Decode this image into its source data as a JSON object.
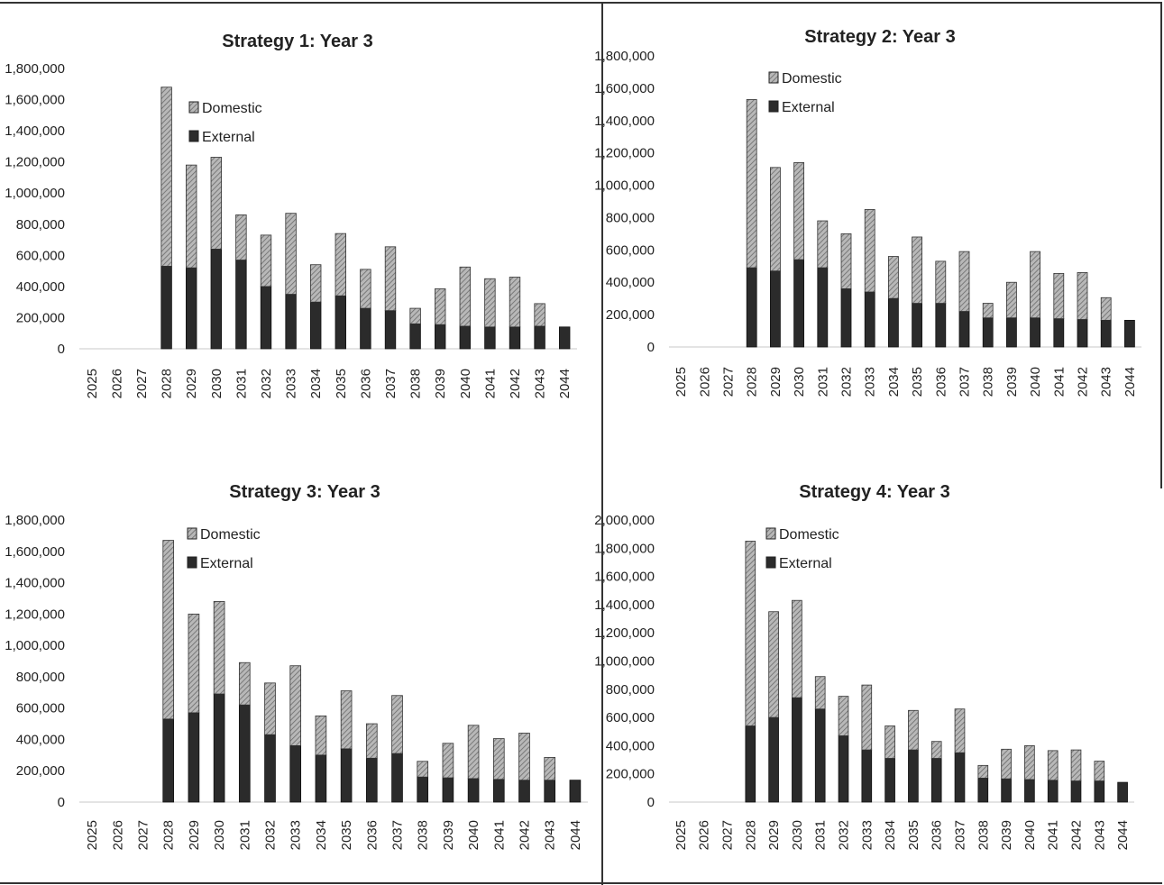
{
  "chart_data": [
    {
      "type": "bar",
      "stacked": true,
      "title": "Strategy 1: Year 3",
      "categories": [
        "2025",
        "2026",
        "2027",
        "2028",
        "2029",
        "2030",
        "2031",
        "2032",
        "2033",
        "2034",
        "2035",
        "2036",
        "2037",
        "2038",
        "2039",
        "2040",
        "2041",
        "2042",
        "2043",
        "2044"
      ],
      "series": [
        {
          "name": "External",
          "values": [
            0,
            0,
            0,
            530000,
            520000,
            640000,
            570000,
            400000,
            350000,
            300000,
            340000,
            260000,
            245000,
            160000,
            155000,
            145000,
            140000,
            140000,
            145000,
            140000
          ]
        },
        {
          "name": "Domestic",
          "values": [
            0,
            0,
            0,
            1150000,
            660000,
            590000,
            290000,
            330000,
            520000,
            240000,
            400000,
            250000,
            410000,
            100000,
            230000,
            380000,
            310000,
            320000,
            145000,
            0
          ]
        }
      ],
      "ylim": [
        0,
        1800000
      ],
      "yticks": [
        "0",
        "200,000",
        "400,000",
        "600,000",
        "800,000",
        "1,000,000",
        "1,200,000",
        "1,400,000",
        "1,600,000",
        "1,800,000"
      ],
      "legend": {
        "position": "top-left",
        "entries": [
          "Domestic",
          "External"
        ]
      },
      "colors": {
        "Domestic": "#b8b8b8",
        "External": "#2b2b2b"
      }
    },
    {
      "type": "bar",
      "stacked": true,
      "title": "Strategy 2: Year 3",
      "categories": [
        "2025",
        "2026",
        "2027",
        "2028",
        "2029",
        "2030",
        "2031",
        "2032",
        "2033",
        "2034",
        "2035",
        "2036",
        "2037",
        "2038",
        "2039",
        "2040",
        "2041",
        "2042",
        "2043",
        "2044"
      ],
      "series": [
        {
          "name": "External",
          "values": [
            0,
            0,
            0,
            490000,
            470000,
            540000,
            490000,
            360000,
            340000,
            300000,
            270000,
            270000,
            220000,
            180000,
            180000,
            180000,
            175000,
            170000,
            165000,
            165000
          ]
        },
        {
          "name": "Domestic",
          "values": [
            0,
            0,
            0,
            1040000,
            640000,
            600000,
            290000,
            340000,
            510000,
            260000,
            410000,
            260000,
            370000,
            90000,
            220000,
            410000,
            280000,
            290000,
            140000,
            0
          ]
        }
      ],
      "ylim": [
        0,
        1800000
      ],
      "yticks": [
        "0",
        "200,000",
        "400,000",
        "600,000",
        "800,000",
        "1,000,000",
        "1,200,000",
        "1,400,000",
        "1,600,000",
        "1,800,000"
      ],
      "legend": {
        "position": "top-left",
        "entries": [
          "Domestic",
          "External"
        ]
      },
      "colors": {
        "Domestic": "#b8b8b8",
        "External": "#2b2b2b"
      }
    },
    {
      "type": "bar",
      "stacked": true,
      "title": "Strategy 3: Year 3",
      "categories": [
        "2025",
        "2026",
        "2027",
        "2028",
        "2029",
        "2030",
        "2031",
        "2032",
        "2033",
        "2034",
        "2035",
        "2036",
        "2037",
        "2038",
        "2039",
        "2040",
        "2041",
        "2042",
        "2043",
        "2044"
      ],
      "series": [
        {
          "name": "External",
          "values": [
            0,
            0,
            0,
            530000,
            570000,
            690000,
            620000,
            430000,
            360000,
            300000,
            340000,
            280000,
            310000,
            160000,
            155000,
            150000,
            145000,
            140000,
            140000,
            140000
          ]
        },
        {
          "name": "Domestic",
          "values": [
            0,
            0,
            0,
            1140000,
            630000,
            590000,
            270000,
            330000,
            510000,
            250000,
            370000,
            220000,
            370000,
            100000,
            220000,
            340000,
            260000,
            300000,
            145000,
            0
          ]
        }
      ],
      "ylim": [
        0,
        1800000
      ],
      "yticks": [
        "0",
        "200,000",
        "400,000",
        "600,000",
        "800,000",
        "1,000,000",
        "1,200,000",
        "1,400,000",
        "1,600,000",
        "1,800,000"
      ],
      "legend": {
        "position": "top-left",
        "entries": [
          "Domestic",
          "External"
        ]
      },
      "colors": {
        "Domestic": "#b8b8b8",
        "External": "#2b2b2b"
      }
    },
    {
      "type": "bar",
      "stacked": true,
      "title": "Strategy 4: Year 3",
      "categories": [
        "2025",
        "2026",
        "2027",
        "2028",
        "2029",
        "2030",
        "2031",
        "2032",
        "2033",
        "2034",
        "2035",
        "2036",
        "2037",
        "2038",
        "2039",
        "2040",
        "2041",
        "2042",
        "2043",
        "2044"
      ],
      "series": [
        {
          "name": "External",
          "values": [
            0,
            0,
            0,
            540000,
            600000,
            740000,
            660000,
            470000,
            370000,
            310000,
            370000,
            310000,
            350000,
            170000,
            165000,
            160000,
            155000,
            150000,
            150000,
            140000
          ]
        },
        {
          "name": "Domestic",
          "values": [
            0,
            0,
            0,
            1310000,
            750000,
            690000,
            230000,
            280000,
            460000,
            230000,
            280000,
            120000,
            310000,
            90000,
            210000,
            240000,
            210000,
            220000,
            140000,
            0
          ]
        }
      ],
      "ylim": [
        0,
        2000000
      ],
      "yticks": [
        "0",
        "200,000",
        "400,000",
        "600,000",
        "800,000",
        "1,000,000",
        "1,200,000",
        "1,400,000",
        "1,600,000",
        "1,800,000",
        "2,000,000"
      ],
      "legend": {
        "position": "top-left",
        "entries": [
          "Domestic",
          "External"
        ]
      },
      "colors": {
        "Domestic": "#b8b8b8",
        "External": "#2b2b2b"
      }
    }
  ]
}
